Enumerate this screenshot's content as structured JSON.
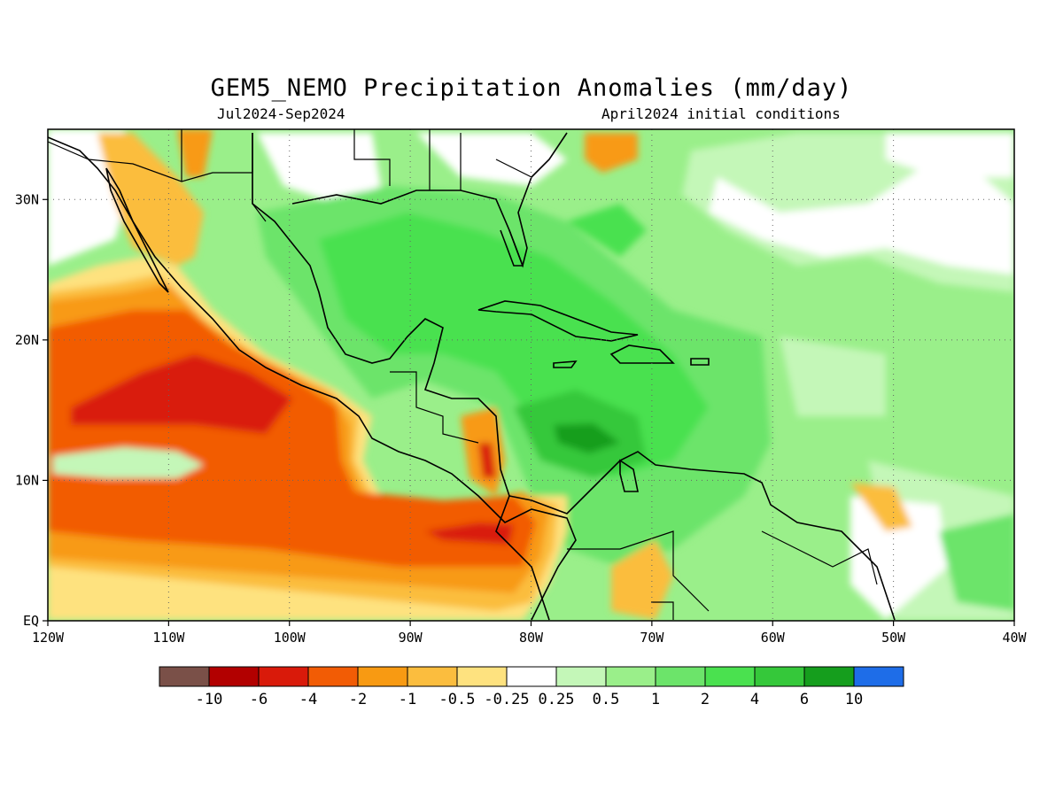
{
  "title": "GEM5_NEMO Precipitation Anomalies (mm/day)",
  "subtitle_left": "Jul2024-Sep2024",
  "subtitle_right": "April2024 initial conditions",
  "map": {
    "lon_range": [
      -120,
      -40
    ],
    "lat_range": [
      0,
      35
    ],
    "lon_ticks": [
      {
        "value": -120,
        "label": "120W"
      },
      {
        "value": -110,
        "label": "110W"
      },
      {
        "value": -100,
        "label": "100W"
      },
      {
        "value": -90,
        "label": "90W"
      },
      {
        "value": -80,
        "label": "80W"
      },
      {
        "value": -70,
        "label": "70W"
      },
      {
        "value": -60,
        "label": "60W"
      },
      {
        "value": -50,
        "label": "50W"
      },
      {
        "value": -40,
        "label": "40W"
      }
    ],
    "lat_ticks": [
      {
        "value": 0,
        "label": "EQ"
      },
      {
        "value": 10,
        "label": "10N"
      },
      {
        "value": 20,
        "label": "20N"
      },
      {
        "value": 30,
        "label": "30N"
      }
    ],
    "grid": "dotted"
  },
  "colorbar": {
    "colors": [
      "#7a5048",
      "#b20000",
      "#d91a0a",
      "#f25c05",
      "#f89a12",
      "#fbbd3e",
      "#fee27f",
      "#ffffff",
      "#c4f7b8",
      "#9aef8a",
      "#6ce46a",
      "#4ae14f",
      "#35c83a",
      "#159e1d",
      "#1e6de8"
    ],
    "labels": [
      "-10",
      "-6",
      "-4",
      "-2",
      "-1",
      "-0.5",
      "-0.25",
      "0.25",
      "0.5",
      "1",
      "2",
      "4",
      "6",
      "10"
    ]
  }
}
